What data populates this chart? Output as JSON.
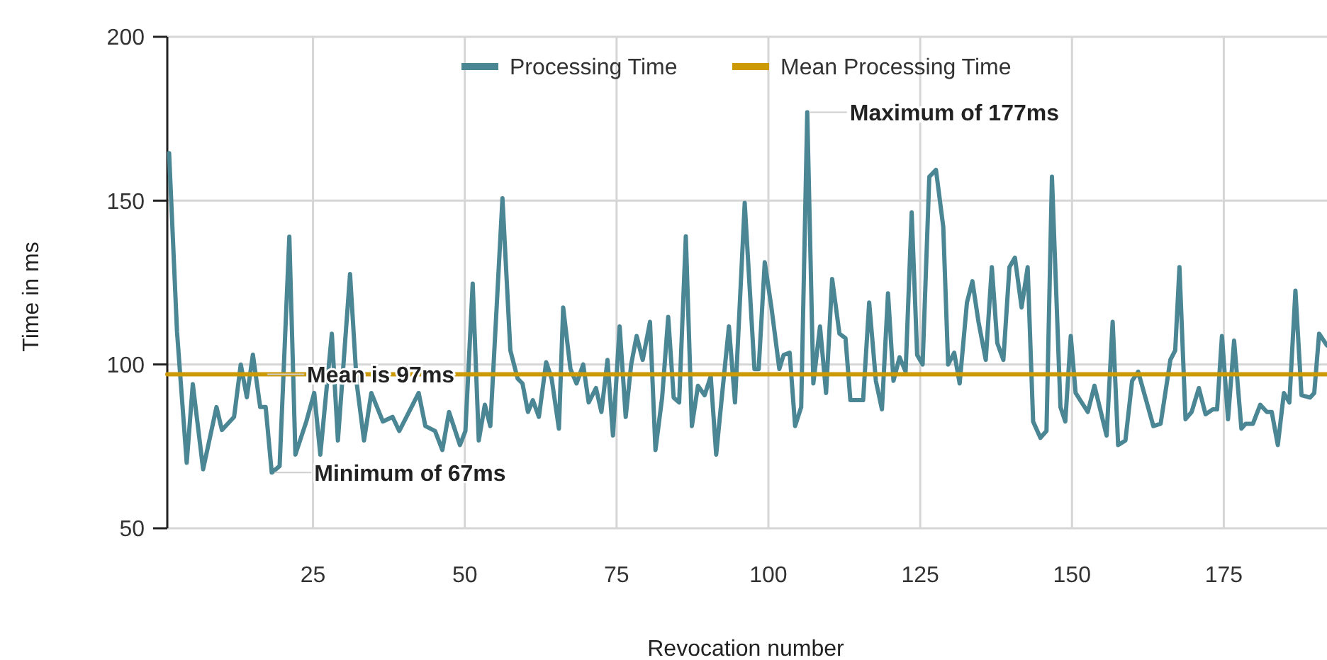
{
  "chart_data": {
    "type": "line",
    "xlabel": "Revocation number",
    "ylabel": "Time in ms",
    "xlim": [
      1,
      192
    ],
    "ylim": [
      50,
      200
    ],
    "xticks": [
      25,
      50,
      75,
      100,
      125,
      150,
      175
    ],
    "yticks": [
      50,
      100,
      150,
      200
    ],
    "grid": true,
    "legend": "top",
    "line_style": "solid",
    "marker": "none",
    "series": [
      {
        "name": "Processing Time",
        "color": "#4b8694",
        "x": [
          1.3,
          2.6,
          4.2,
          5.2,
          6.9,
          9.1,
          10,
          12,
          13.1,
          14.1,
          15.1,
          16.3,
          17.2,
          18.2,
          19.5,
          21.1,
          22.1,
          23.9,
          25.2,
          26.2,
          28.1,
          29.1,
          31.1,
          32.2,
          33.4,
          34.6,
          36.5,
          38.1,
          39.2,
          40.4,
          42.4,
          43.5,
          45.1,
          46.3,
          47.4,
          49.2,
          50.1,
          51.3,
          52.3,
          53.3,
          54.2,
          56.2,
          57.5,
          58.7,
          59.5,
          60.4,
          61.2,
          62.2,
          63.4,
          64.3,
          65.5,
          66.2,
          67.4,
          68.4,
          69.5,
          70.4,
          71.6,
          72.5,
          73.5,
          74.4,
          75.5,
          76.5,
          77.4,
          78.3,
          79.3,
          80.5,
          81.4,
          82.5,
          83.5,
          84.4,
          85.3,
          86.4,
          87.4,
          88.4,
          89.5,
          90.5,
          91.4,
          92.4,
          93.5,
          94.5,
          96.1,
          97.7,
          98.4,
          99.4,
          100.5,
          101.8,
          102.5,
          103.5,
          104.4,
          105.4,
          106.4,
          107.4,
          108.5,
          109.5,
          110.5,
          111.7,
          112.7,
          113.5,
          115.6,
          116.6,
          117.7,
          118.7,
          119.7,
          120.6,
          121.6,
          122.6,
          123.6,
          124.5,
          125.4,
          126.5,
          127.6,
          128.8,
          129.6,
          130.6,
          131.5,
          132.7,
          133.6,
          134.6,
          135.8,
          136.8,
          137.7,
          138.7,
          139.7,
          140.6,
          141.7,
          142.7,
          143.6,
          144.8,
          145.8,
          146.7,
          148.1,
          148.9,
          149.8,
          150.6,
          152.6,
          153.7,
          155.7,
          156.7,
          157.6,
          158.8,
          159.9,
          160.9,
          163.4,
          164.6,
          166.2,
          167,
          167.7,
          168.7,
          169.7,
          170.9,
          172,
          173.2,
          173.9,
          174.7,
          175.7,
          176.7,
          177.9,
          178.6,
          179.8,
          181,
          182.1,
          182.9,
          183.9,
          184.9,
          185.8,
          186.8,
          187.8,
          189.2,
          189.9,
          190.7,
          192
        ],
        "values": [
          164.5,
          110,
          70,
          94,
          68,
          87,
          80,
          84,
          100,
          90,
          103,
          87,
          87,
          67,
          69,
          139,
          72.5,
          82.6,
          91.3,
          72.5,
          109.4,
          76.8,
          127.6,
          94.2,
          76.8,
          91.3,
          82.6,
          84,
          79.7,
          84,
          91.3,
          81.2,
          79.7,
          73.9,
          85.5,
          75.4,
          79.7,
          124.7,
          76.8,
          87.7,
          81.2,
          150.7,
          104.3,
          95.7,
          94.2,
          85.5,
          89.1,
          84,
          100.7,
          95.7,
          80.4,
          117.4,
          98.6,
          94.2,
          100,
          88.4,
          92.8,
          85.5,
          101.4,
          78.3,
          111.6,
          84,
          100,
          108.7,
          101.4,
          113,
          73.9,
          89.9,
          114.5,
          89.9,
          88.4,
          139.1,
          81.2,
          93.5,
          90.6,
          96.4,
          72.5,
          91.3,
          111.6,
          88.4,
          149.3,
          98.6,
          98.6,
          131.2,
          117.4,
          98.6,
          102.9,
          103.6,
          81.2,
          87,
          177,
          94.2,
          111.6,
          91.3,
          126.1,
          109.4,
          108,
          89.1,
          89.1,
          118.9,
          95,
          86.3,
          121.7,
          95,
          102.2,
          97.8,
          146.4,
          102.9,
          100,
          157.3,
          159.4,
          142,
          100,
          103.6,
          94.2,
          118.9,
          125.4,
          113,
          101.4,
          129.7,
          106.5,
          101.4,
          129.7,
          132.6,
          117.4,
          129.7,
          82.6,
          77.6,
          79.7,
          157.3,
          87,
          82.6,
          108.7,
          91.3,
          85.5,
          93.5,
          78.3,
          113,
          75.4,
          76.8,
          95,
          97.8,
          81.2,
          81.9,
          101.4,
          104.3,
          129.7,
          83.3,
          85.5,
          92.8,
          84.8,
          86.3,
          86.3,
          108.7,
          83.3,
          107.3,
          80.4,
          81.9,
          81.9,
          87.7,
          85.5,
          85.5,
          75.4,
          91.3,
          88.4,
          122.5,
          90.6,
          89.9,
          91.3,
          109.4,
          105.8
        ]
      },
      {
        "name": "Mean Processing Time",
        "color": "#cc9a06",
        "x": [
          1,
          192
        ],
        "values": [
          97,
          97
        ]
      }
    ],
    "annotations": [
      {
        "text": "Mean is 97ms",
        "x": 17,
        "y": 97
      },
      {
        "text": "Maximum of 177ms",
        "x": 106.4,
        "y": 177
      },
      {
        "text": "Minimum of 67ms",
        "x": 18.2,
        "y": 67
      }
    ]
  }
}
